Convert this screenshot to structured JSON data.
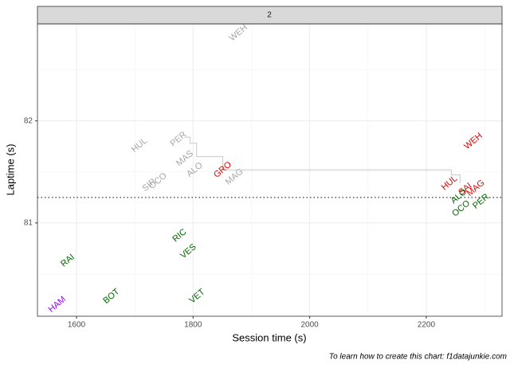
{
  "chart_data": {
    "type": "scatter",
    "facet": "2",
    "xlabel": "Session time (s)",
    "ylabel": "Laptime (s)",
    "caption": "To learn how to create this chart: f1datajunkie.com",
    "xlim": [
      1533,
      2330
    ],
    "ylim": [
      80.086,
      82.95
    ],
    "xticks": [
      1600,
      1800,
      2000,
      2200
    ],
    "yticks": [
      81,
      82
    ],
    "grid": true,
    "labels": [
      "WEH",
      "HUL",
      "PER",
      "MAS",
      "ALO",
      "SIR",
      "OCO",
      "GRO",
      "MAG",
      "WEH",
      "HUL",
      "SAI",
      "MAG",
      "ALO",
      "OCO",
      "PER",
      "RIC",
      "VES",
      "RAI",
      "BOT",
      "VET",
      "HAM"
    ],
    "x": [
      1878,
      1708,
      1775,
      1786,
      1803,
      1725,
      1740,
      1851,
      1871,
      2281,
      2240,
      2267,
      2285,
      2256,
      2260,
      2294,
      1777,
      1792,
      1585,
      1660,
      1807,
      1567
    ],
    "y": [
      82.86,
      81.76,
      81.82,
      81.63,
      81.52,
      81.37,
      81.41,
      81.52,
      81.45,
      81.8,
      81.39,
      81.33,
      81.34,
      81.26,
      81.14,
      81.21,
      80.875,
      80.72,
      80.63,
      80.28,
      80.28,
      80.2
    ],
    "colors": [
      "#a6a6a6",
      "#a6a6a6",
      "#a6a6a6",
      "#a6a6a6",
      "#a6a6a6",
      "#a6a6a6",
      "#a6a6a6",
      "#e00000",
      "#a6a6a6",
      "#e00000",
      "#e00000",
      "#e00000",
      "#e00000",
      "#006400",
      "#006400",
      "#006400",
      "#006400",
      "#006400",
      "#006400",
      "#006400",
      "#006400",
      "#9900ff"
    ],
    "step_line": {
      "x": [
        1785,
        1795,
        1806,
        1851,
        2243,
        2258
      ],
      "y": [
        81.84,
        81.78,
        81.65,
        81.52,
        81.47,
        81.39
      ],
      "color": "#c8c8c8"
    },
    "hline": 81.25
  }
}
